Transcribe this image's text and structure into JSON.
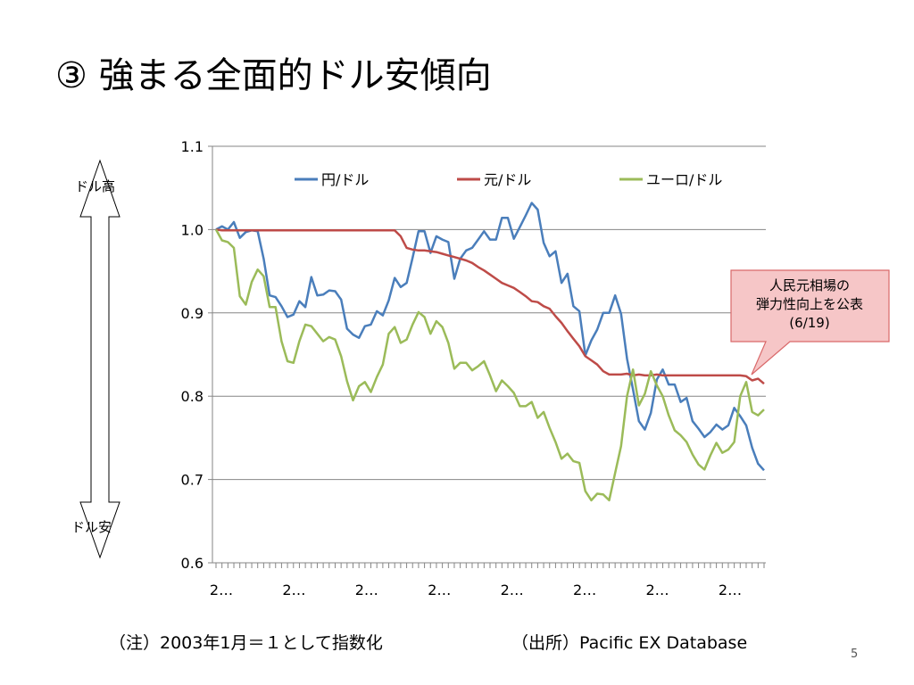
{
  "slide": {
    "title": "③ 強まる全面的ドル安傾向",
    "page_number": "5"
  },
  "arrow": {
    "top_label": "ドル高",
    "bottom_label": "ドル安"
  },
  "callout": {
    "line1": "人民元相場の",
    "line2": "弾力性向上を公表",
    "line3": "(6/19)",
    "fill": "#f6c6c7",
    "border": "#d9696a"
  },
  "notes": {
    "left": "（注）2003年1月＝１として指数化",
    "right": "（出所）Pacific EX Database"
  },
  "chart_data": {
    "type": "line",
    "ylim": [
      0.6,
      1.1
    ],
    "yticks": [
      "0.6",
      "0.7",
      "0.8",
      "0.9",
      "1.0",
      "1.1"
    ],
    "xtick_labels": [
      "2…",
      "2…",
      "2…",
      "2…",
      "2…",
      "2…",
      "2…",
      "2…"
    ],
    "grid": "horizontal",
    "legend": "top",
    "series": [
      {
        "name": "円/ドル",
        "color": "#4a7ebb",
        "values": [
          1.0,
          1.004,
          1.0,
          1.009,
          0.99,
          0.997,
          0.999,
          0.998,
          0.965,
          0.921,
          0.919,
          0.908,
          0.895,
          0.898,
          0.914,
          0.907,
          0.943,
          0.921,
          0.922,
          0.927,
          0.926,
          0.916,
          0.881,
          0.874,
          0.87,
          0.884,
          0.886,
          0.902,
          0.897,
          0.915,
          0.942,
          0.931,
          0.936,
          0.966,
          0.998,
          0.998,
          0.972,
          0.992,
          0.988,
          0.985,
          0.941,
          0.965,
          0.975,
          0.978,
          0.988,
          0.998,
          0.988,
          0.988,
          1.014,
          1.014,
          0.989,
          1.003,
          1.017,
          1.032,
          1.024,
          0.984,
          0.968,
          0.974,
          0.936,
          0.947,
          0.908,
          0.902,
          0.849,
          0.867,
          0.88,
          0.9,
          0.9,
          0.921,
          0.899,
          0.845,
          0.808,
          0.77,
          0.76,
          0.78,
          0.82,
          0.832,
          0.814,
          0.814,
          0.793,
          0.798,
          0.77,
          0.761,
          0.751,
          0.757,
          0.766,
          0.76,
          0.765,
          0.786,
          0.776,
          0.765,
          0.738,
          0.719,
          0.711
        ]
      },
      {
        "name": "元/ドル",
        "color": "#be4b48",
        "values": [
          1.0,
          0.999,
          0.999,
          0.999,
          0.999,
          0.999,
          0.999,
          0.999,
          0.999,
          0.999,
          0.999,
          0.999,
          0.999,
          0.999,
          0.999,
          0.999,
          0.999,
          0.999,
          0.999,
          0.999,
          0.999,
          0.999,
          0.999,
          0.999,
          0.999,
          0.999,
          0.999,
          0.999,
          0.999,
          0.999,
          0.999,
          0.992,
          0.978,
          0.976,
          0.975,
          0.975,
          0.974,
          0.973,
          0.971,
          0.969,
          0.967,
          0.965,
          0.963,
          0.96,
          0.955,
          0.951,
          0.946,
          0.941,
          0.936,
          0.933,
          0.93,
          0.925,
          0.92,
          0.914,
          0.913,
          0.908,
          0.905,
          0.896,
          0.888,
          0.878,
          0.869,
          0.86,
          0.848,
          0.843,
          0.838,
          0.83,
          0.826,
          0.826,
          0.826,
          0.827,
          0.825,
          0.826,
          0.825,
          0.825,
          0.826,
          0.825,
          0.825,
          0.825,
          0.825,
          0.825,
          0.825,
          0.825,
          0.825,
          0.825,
          0.825,
          0.825,
          0.825,
          0.825,
          0.825,
          0.824,
          0.819,
          0.821,
          0.815
        ]
      },
      {
        "name": "ユーロ/ドル",
        "color": "#9bbb59",
        "values": [
          1.0,
          0.987,
          0.985,
          0.978,
          0.92,
          0.91,
          0.937,
          0.952,
          0.944,
          0.907,
          0.907,
          0.866,
          0.842,
          0.84,
          0.866,
          0.886,
          0.884,
          0.875,
          0.866,
          0.871,
          0.868,
          0.848,
          0.818,
          0.795,
          0.812,
          0.817,
          0.805,
          0.823,
          0.838,
          0.875,
          0.883,
          0.864,
          0.868,
          0.886,
          0.901,
          0.895,
          0.875,
          0.89,
          0.883,
          0.864,
          0.833,
          0.84,
          0.84,
          0.831,
          0.836,
          0.842,
          0.825,
          0.806,
          0.819,
          0.812,
          0.804,
          0.788,
          0.788,
          0.793,
          0.774,
          0.781,
          0.762,
          0.745,
          0.725,
          0.731,
          0.722,
          0.72,
          0.686,
          0.675,
          0.683,
          0.682,
          0.675,
          0.708,
          0.74,
          0.8,
          0.832,
          0.789,
          0.803,
          0.83,
          0.813,
          0.8,
          0.777,
          0.759,
          0.753,
          0.745,
          0.73,
          0.718,
          0.712,
          0.729,
          0.744,
          0.732,
          0.736,
          0.745,
          0.8,
          0.817,
          0.781,
          0.777,
          0.784
        ]
      }
    ]
  }
}
